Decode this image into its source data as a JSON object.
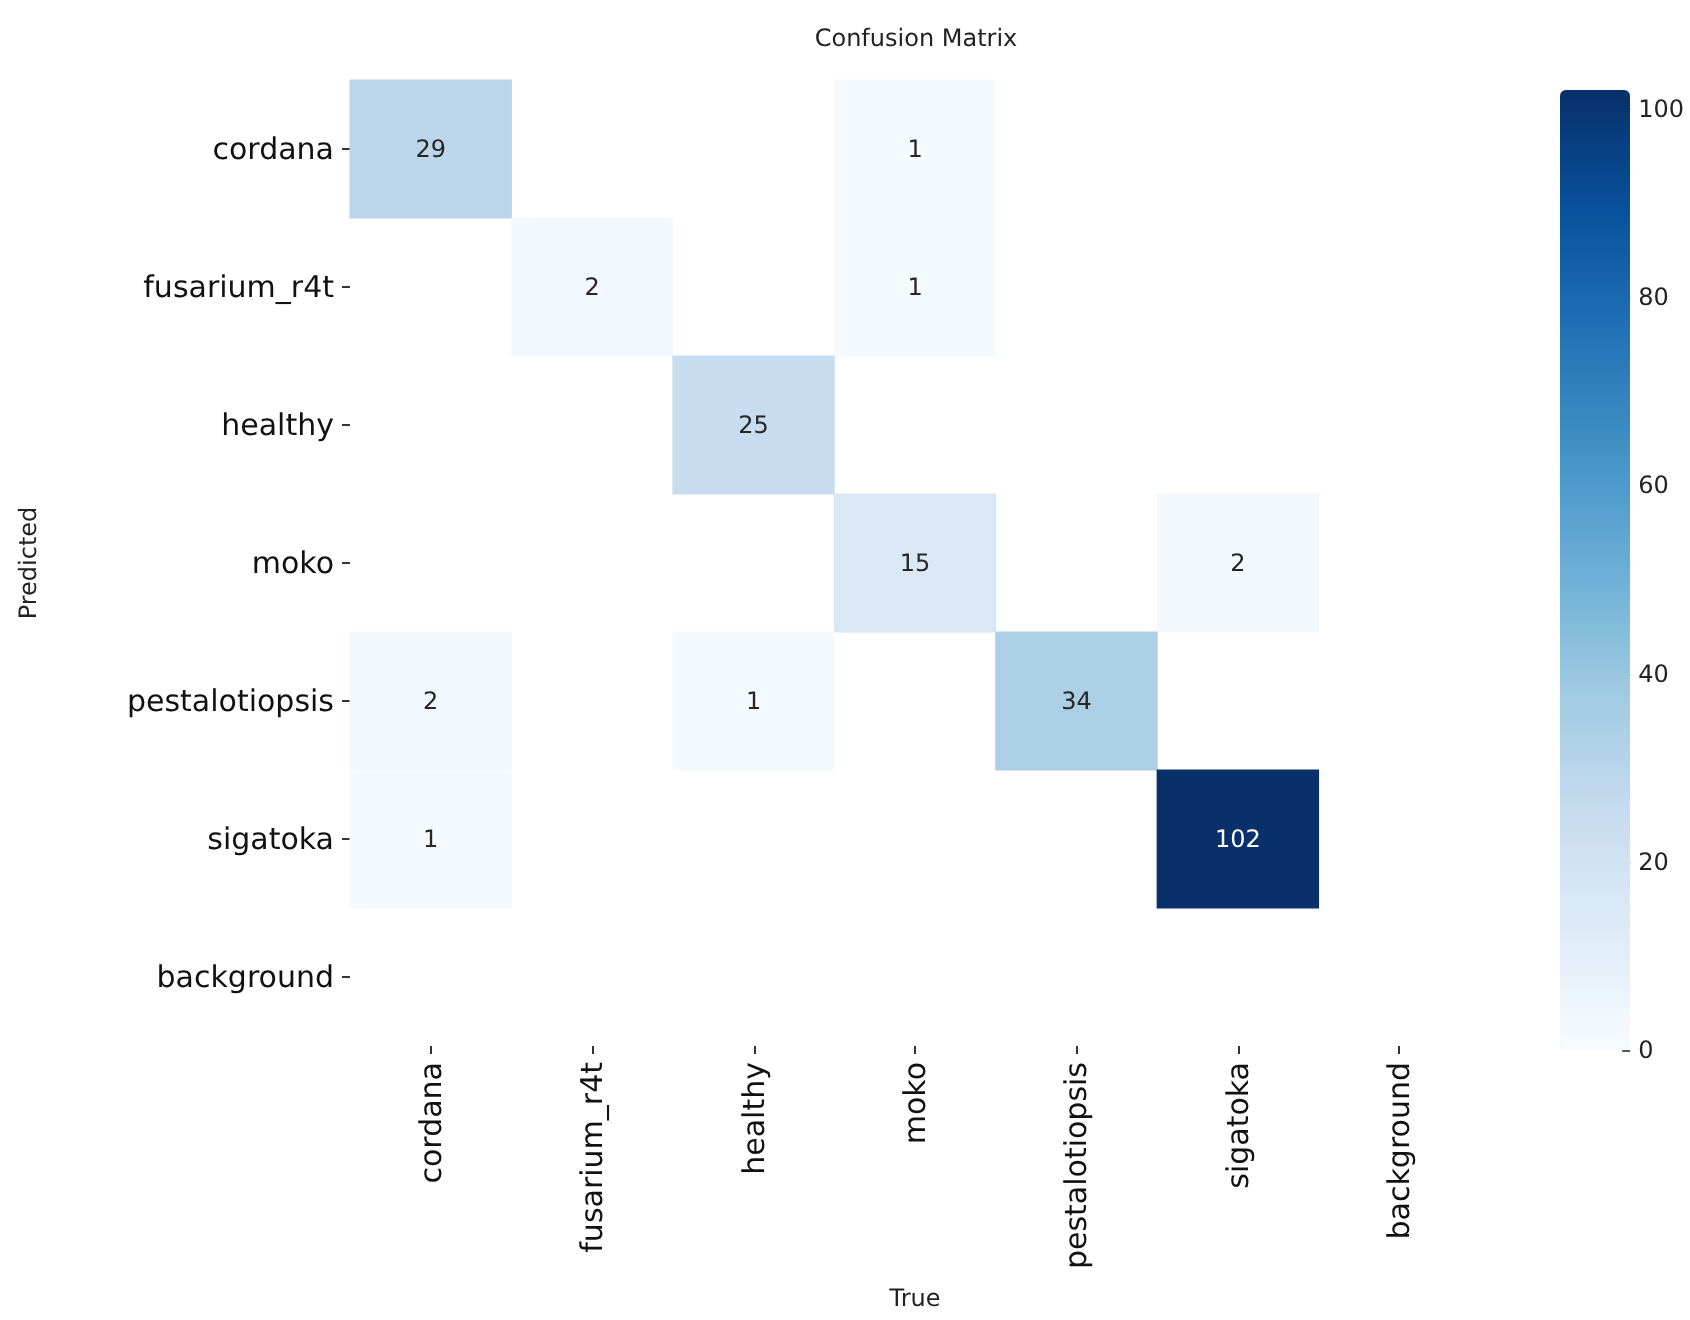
{
  "chart_data": {
    "type": "heatmap",
    "title": "Confusion Matrix",
    "xlabel": "True",
    "ylabel": "Predicted",
    "categories": [
      "cordana",
      "fusarium_r4t",
      "healthy",
      "moko",
      "pestalotiopsis",
      "sigatoka",
      "background"
    ],
    "y_categories": [
      "cordana",
      "fusarium_r4t",
      "healthy",
      "moko",
      "pestalotiopsis",
      "sigatoka",
      "background"
    ],
    "cells": [
      [
        29,
        null,
        null,
        1,
        null,
        null,
        null
      ],
      [
        null,
        2,
        null,
        1,
        null,
        null,
        null
      ],
      [
        null,
        null,
        25,
        null,
        null,
        null,
        null
      ],
      [
        null,
        null,
        null,
        15,
        null,
        2,
        null
      ],
      [
        2,
        null,
        1,
        null,
        34,
        null,
        null
      ],
      [
        1,
        null,
        null,
        null,
        null,
        102,
        null
      ],
      [
        null,
        null,
        null,
        null,
        null,
        null,
        null
      ]
    ],
    "clim": [
      0,
      102
    ],
    "cticks": [
      0,
      20,
      40,
      60,
      80,
      100
    ],
    "data_labels": true
  }
}
